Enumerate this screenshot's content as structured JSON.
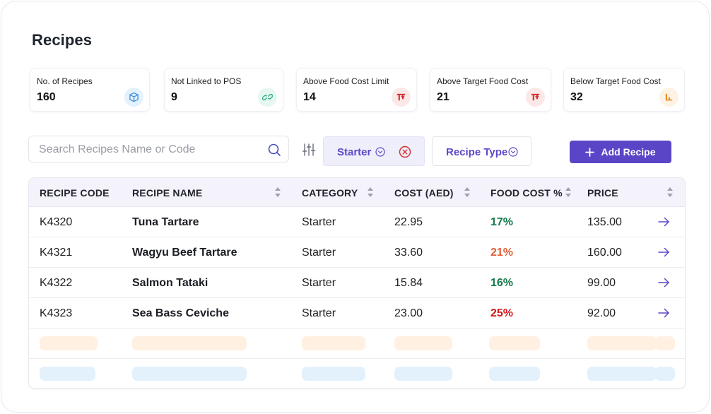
{
  "page": {
    "title": "Recipes"
  },
  "stats": [
    {
      "label": "No. of Recipes",
      "value": "160",
      "icon": "cube-icon",
      "icon_bg": "#e3f2fd",
      "icon_color": "#3a8fd8"
    },
    {
      "label": "Not Linked to POS",
      "value": "9",
      "icon": "link-icon",
      "icon_bg": "#e6f7f0",
      "icon_color": "#2fae84"
    },
    {
      "label": "Above Food Cost Limit",
      "value": "14",
      "icon": "cost-limit-icon",
      "icon_bg": "#fde8e8",
      "icon_color": "#d62b2b"
    },
    {
      "label": "Above Target Food Cost",
      "value": "21",
      "icon": "above-target-icon",
      "icon_bg": "#fde8e8",
      "icon_color": "#d62b2b"
    },
    {
      "label": "Below Target Food Cost",
      "value": "32",
      "icon": "below-target-icon",
      "icon_bg": "#fef2e3",
      "icon_color": "#e58a1f"
    }
  ],
  "toolbar": {
    "search_placeholder": "Search Recipes Name or Code",
    "filter_starter": "Starter",
    "filter_type": "Recipe Type",
    "add_label": "Add Recipe",
    "accent": "#5b45c7"
  },
  "table": {
    "headers": {
      "code": "RECIPE CODE",
      "name": "RECIPE NAME",
      "category": "CATEGORY",
      "cost": "COST (AED)",
      "food_cost": "FOOD COST %",
      "price": "PRICE"
    },
    "rows": [
      {
        "code": "K4320",
        "name": "Tuna Tartare",
        "category": "Starter",
        "cost": "22.95",
        "food_cost": "17%",
        "food_cost_color": "#137a4a",
        "price": "135.00"
      },
      {
        "code": "K4321",
        "name": "Wagyu Beef Tartare",
        "category": "Starter",
        "cost": "33.60",
        "food_cost": "21%",
        "food_cost_color": "#e0603a",
        "price": "160.00"
      },
      {
        "code": "K4322",
        "name": "Salmon Tataki",
        "category": "Starter",
        "cost": "15.84",
        "food_cost": "16%",
        "food_cost_color": "#137a4a",
        "price": "99.00"
      },
      {
        "code": "K4323",
        "name": "Sea Bass Ceviche",
        "category": "Starter",
        "cost": "23.00",
        "food_cost": "25%",
        "food_cost_color": "#d11a1a",
        "price": "92.00"
      }
    ],
    "skeleton_colors": [
      "#fff0e1",
      "#e3f1fd"
    ]
  }
}
